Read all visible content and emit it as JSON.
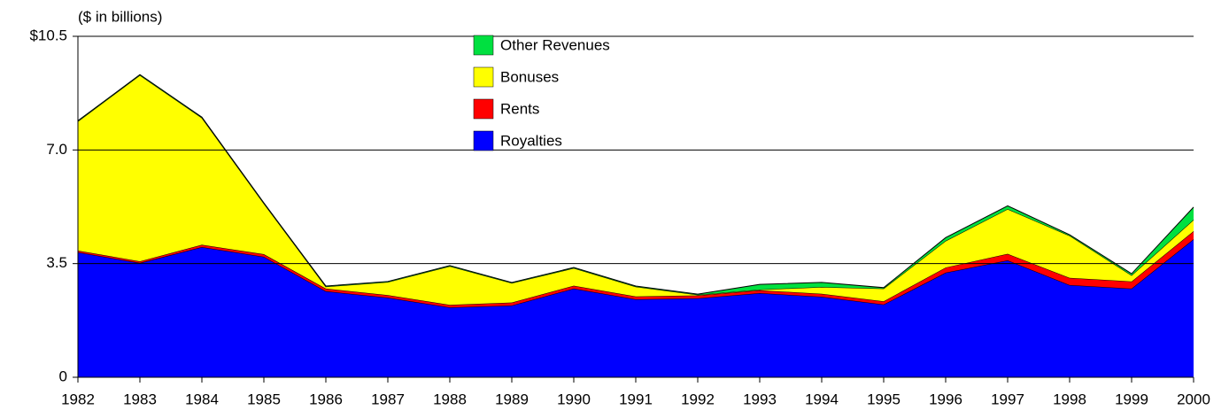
{
  "chart_data": {
    "type": "stacked_area",
    "y_axis_label": "($ in billions)",
    "categories": [
      "1982",
      "1983",
      "1984",
      "1985",
      "1986",
      "1987",
      "1988",
      "1989",
      "1990",
      "1991",
      "1992",
      "1993",
      "1994",
      "1995",
      "1996",
      "1997",
      "1998",
      "1999",
      "2000"
    ],
    "series": [
      {
        "name": "Royalties",
        "color": "#0000ff",
        "values": [
          3.85,
          3.52,
          4.01,
          3.71,
          2.65,
          2.45,
          2.15,
          2.21,
          2.73,
          2.4,
          2.43,
          2.59,
          2.48,
          2.24,
          3.22,
          3.6,
          2.84,
          2.73,
          4.25
        ]
      },
      {
        "name": "Rents",
        "color": "#ff0000",
        "values": [
          0.05,
          0.05,
          0.07,
          0.08,
          0.08,
          0.08,
          0.08,
          0.09,
          0.09,
          0.09,
          0.09,
          0.09,
          0.09,
          0.1,
          0.16,
          0.2,
          0.22,
          0.22,
          0.25
        ]
      },
      {
        "name": "Bonuses",
        "color": "#ffff00",
        "values": [
          3.98,
          5.73,
          3.91,
          1.56,
          0.06,
          0.4,
          1.19,
          0.6,
          0.54,
          0.3,
          0.02,
          0.02,
          0.21,
          0.39,
          0.82,
          1.38,
          1.3,
          0.19,
          0.35
        ]
      },
      {
        "name": "Other Revenues",
        "color": "#00e040",
        "values": [
          0.02,
          0.02,
          0.02,
          0.02,
          0.02,
          0.02,
          0.02,
          0.02,
          0.02,
          0.02,
          0.02,
          0.16,
          0.14,
          0.03,
          0.1,
          0.1,
          0.03,
          0.05,
          0.39
        ]
      }
    ],
    "ylim": [
      0,
      10.5
    ],
    "yticks": [
      0,
      3.5,
      {
        "value": 7,
        "label": "7.0"
      },
      {
        "value": 10.5,
        "label": "$10.5"
      }
    ],
    "grid": true
  }
}
